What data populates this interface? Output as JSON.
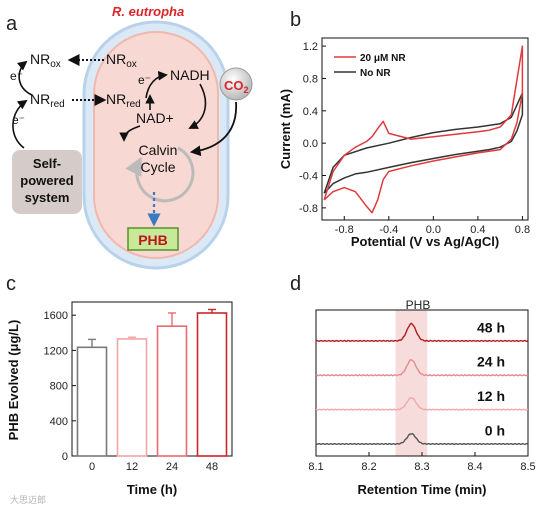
{
  "panels": {
    "a": "a",
    "b": "b",
    "c": "c",
    "d": "d"
  },
  "diagram": {
    "organism": "R. eutropha",
    "nr_ox_left": "NR",
    "nr_ox_sub": "ox",
    "nr_red_left": "NR",
    "nr_red_sub": "red",
    "nr_ox_right": "NR",
    "nr_ox_right_sub": "ox",
    "nr_red_right": "NR",
    "nr_red_right_sub": "red",
    "electron_1": "e⁻",
    "electron_2": "e⁻",
    "electron_3": "e⁻",
    "nadh": "NADH",
    "nad_plus": "NAD+",
    "co2": "CO",
    "co2_sub": "2",
    "calvin_line1": "Calvin",
    "calvin_line2": "Cycle",
    "phb": "PHB",
    "system_line1": "Self-",
    "system_line2": "powered",
    "system_line3": "system"
  },
  "watermark": "大思迈郎",
  "chart_data": [
    {
      "type": "line",
      "panel": "b",
      "xlabel": "Potential (V vs Ag/AgCl)",
      "ylabel": "Current (mA)",
      "xlim": [
        -1.0,
        0.85
      ],
      "ylim": [
        -0.95,
        1.3
      ],
      "xticks": [
        "-0.8",
        "-0.4",
        "0.0",
        "0.4",
        "0.8"
      ],
      "xtick_values": [
        -0.8,
        -0.4,
        0.0,
        0.4,
        0.8
      ],
      "yticks": [
        "-0.8",
        "-0.4",
        "0.0",
        "0.4",
        "0.8",
        "1.2"
      ],
      "ytick_values": [
        -0.8,
        -0.4,
        0.0,
        0.4,
        0.8,
        1.2
      ],
      "legend_position": "top-left",
      "series": [
        {
          "name": "20 μM NR",
          "color": "#e03a3e",
          "x": [
            -0.98,
            -0.9,
            -0.8,
            -0.7,
            -0.6,
            -0.55,
            -0.5,
            -0.45,
            -0.4,
            -0.2,
            0.0,
            0.2,
            0.4,
            0.5,
            0.6,
            0.7,
            0.75,
            0.8,
            0.8,
            0.7,
            0.6,
            0.5,
            0.4,
            0.2,
            0.0,
            -0.2,
            -0.4,
            -0.45,
            -0.5,
            -0.55,
            -0.6,
            -0.7,
            -0.8,
            -0.9,
            -0.98
          ],
          "y": [
            -0.7,
            -0.6,
            -0.55,
            -0.6,
            -0.78,
            -0.86,
            -0.7,
            -0.45,
            -0.35,
            -0.28,
            -0.22,
            -0.17,
            -0.12,
            -0.1,
            -0.08,
            0.05,
            0.25,
            0.62,
            1.2,
            0.35,
            0.2,
            0.16,
            0.14,
            0.11,
            0.08,
            0.05,
            0.12,
            0.27,
            0.18,
            0.08,
            0.02,
            -0.05,
            -0.15,
            -0.35,
            -0.7
          ]
        },
        {
          "name": "No NR",
          "color": "#333333",
          "x": [
            -0.98,
            -0.9,
            -0.8,
            -0.7,
            -0.6,
            -0.4,
            -0.2,
            0.0,
            0.2,
            0.4,
            0.5,
            0.6,
            0.7,
            0.75,
            0.8,
            0.8,
            0.7,
            0.6,
            0.5,
            0.4,
            0.2,
            0.0,
            -0.2,
            -0.4,
            -0.6,
            -0.8,
            -0.9,
            -0.98
          ],
          "y": [
            -0.62,
            -0.5,
            -0.43,
            -0.38,
            -0.36,
            -0.3,
            -0.24,
            -0.19,
            -0.14,
            -0.1,
            -0.08,
            -0.05,
            0.02,
            0.15,
            0.35,
            0.62,
            0.32,
            0.24,
            0.22,
            0.2,
            0.17,
            0.13,
            0.07,
            0.0,
            -0.06,
            -0.15,
            -0.3,
            -0.62
          ]
        }
      ]
    },
    {
      "type": "bar",
      "panel": "c",
      "xlabel": "Time (h)",
      "ylabel": "PHB Evolved (μg/L)",
      "ylim": [
        0,
        1750
      ],
      "yticks": [
        "0",
        "400",
        "800",
        "1200",
        "1600"
      ],
      "ytick_values": [
        0,
        400,
        800,
        1200,
        1600
      ],
      "categories": [
        "0",
        "12",
        "24",
        "48"
      ],
      "values": [
        1235,
        1330,
        1475,
        1625
      ],
      "errors": [
        90,
        20,
        150,
        40
      ],
      "colors": [
        "#7a7a7a",
        "#f4a3a6",
        "#e86a70",
        "#c9262c"
      ]
    },
    {
      "type": "line",
      "panel": "d",
      "xlabel": "Retention Time (min)",
      "xlim": [
        8.1,
        8.5
      ],
      "xticks": [
        "8.1",
        "8.2",
        "8.3",
        "8.4",
        "8.5"
      ],
      "xtick_values": [
        8.1,
        8.2,
        8.3,
        8.4,
        8.5
      ],
      "peak_label": "PHB",
      "highlight_x": [
        8.25,
        8.31
      ],
      "peak_center": 8.28,
      "series": [
        {
          "name": "48 h",
          "color": "#b01c22",
          "baseline": 3.0,
          "peak_height": 0.5
        },
        {
          "name": "24 h",
          "color": "#e58a8e",
          "baseline": 2.0,
          "peak_height": 0.45
        },
        {
          "name": "12 h",
          "color": "#f3a8ab",
          "baseline": 1.0,
          "peak_height": 0.35
        },
        {
          "name": "0 h",
          "color": "#555555",
          "baseline": 0.0,
          "peak_height": 0.3
        }
      ]
    }
  ]
}
